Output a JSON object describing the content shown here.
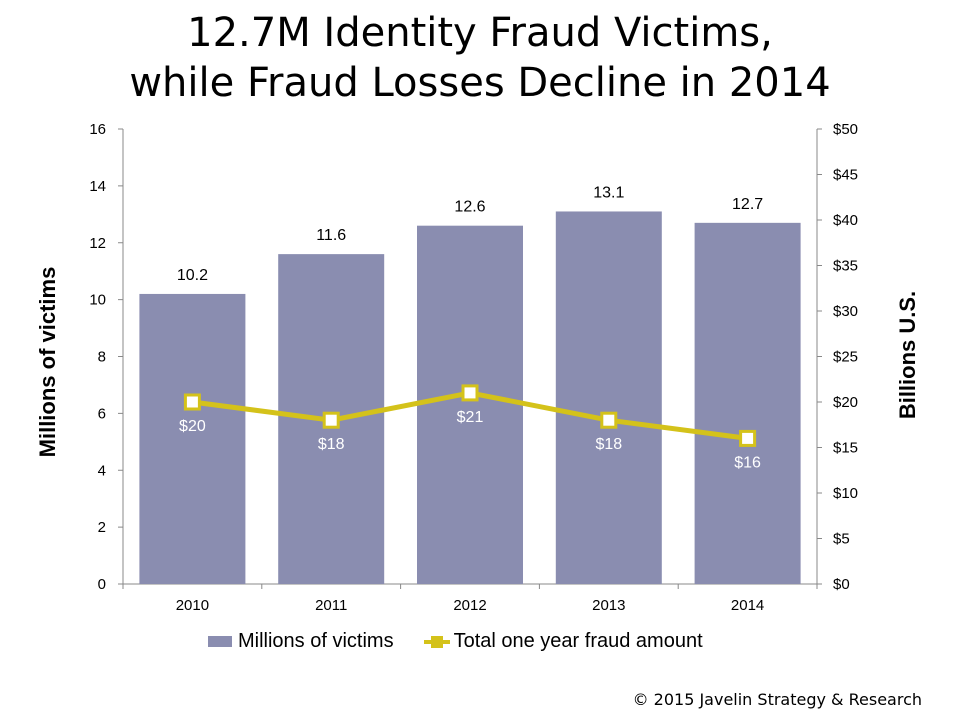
{
  "title_line1": "12.7M Identity Fraud Victims,",
  "title_line2": "while Fraud Losses Decline in 2014",
  "copyright": "© 2015 Javelin Strategy & Research",
  "colors": {
    "bar": "#8a8db0",
    "line": "#d4c21a",
    "axis": "#888888"
  },
  "chart_data": {
    "type": "bar",
    "categories": [
      "2010",
      "2011",
      "2012",
      "2013",
      "2014"
    ],
    "series": [
      {
        "name": "Millions of victims",
        "type": "bar",
        "axis": "left",
        "values": [
          10.2,
          11.6,
          12.6,
          13.1,
          12.7
        ],
        "labels": [
          "10.2",
          "11.6",
          "12.6",
          "13.1",
          "12.7"
        ]
      },
      {
        "name": "Total one year fraud amount",
        "type": "line",
        "axis": "right",
        "values": [
          20,
          18,
          21,
          18,
          16
        ],
        "labels": [
          "$20",
          "$18",
          "$21",
          "$18",
          "$16"
        ]
      }
    ],
    "ylabel_left": "Millions of victims",
    "ylabel_right": "Billions U.S.",
    "ylim_left": [
      0,
      16
    ],
    "ylim_right": [
      0,
      50
    ],
    "yticks_left": [
      "0",
      "2",
      "4",
      "6",
      "8",
      "10",
      "12",
      "14",
      "16"
    ],
    "yticks_right": [
      "$0",
      "$5",
      "$10",
      "$15",
      "$20",
      "$25",
      "$30",
      "$35",
      "$40",
      "$45",
      "$50"
    ],
    "grid": false,
    "legend": "bottom"
  }
}
